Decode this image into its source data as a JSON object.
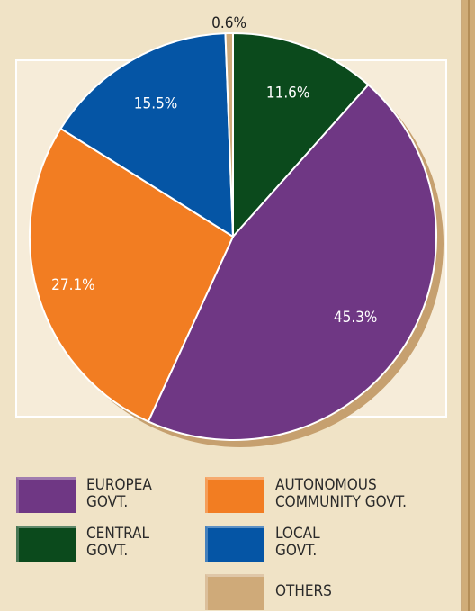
{
  "chart_data": {
    "type": "pie",
    "title": "",
    "slices": [
      {
        "name": "CENTRAL GOVT.",
        "value": 11.6,
        "label": "11.6%",
        "color": "#0b4a1c"
      },
      {
        "name": "EUROPEA GOVT.",
        "value": 45.3,
        "label": "45.3%",
        "color": "#6f3784"
      },
      {
        "name": "AUTONOMOUS COMMUNITY GOVT.",
        "value": 27.1,
        "label": "27.1%",
        "color": "#f27d22"
      },
      {
        "name": "LOCAL GOVT.",
        "value": 15.5,
        "label": "15.5%",
        "color": "#0555a5"
      },
      {
        "name": "OTHERS",
        "value": 0.6,
        "label": "0.6%",
        "color": "#cfaa79"
      }
    ],
    "start_angle_deg": 0,
    "direction": "clockwise",
    "shadow_color": "#c6a06f",
    "inner_panel_color": "#f6ecd9"
  },
  "legend": {
    "items": [
      {
        "key": "europea",
        "label": "EUROPEA\nGOVT.",
        "color": "#6f3784"
      },
      {
        "key": "autonomous",
        "label": "AUTONOMOUS\nCOMMUNITY GOVT.",
        "color": "#f27d22"
      },
      {
        "key": "central",
        "label": "CENTRAL\nGOVT.",
        "color": "#0b4a1c"
      },
      {
        "key": "local",
        "label": "LOCAL\nGOVT.",
        "color": "#0555a5"
      },
      {
        "key": "others",
        "label": "OTHERS",
        "color": "#cfaa79"
      }
    ]
  }
}
